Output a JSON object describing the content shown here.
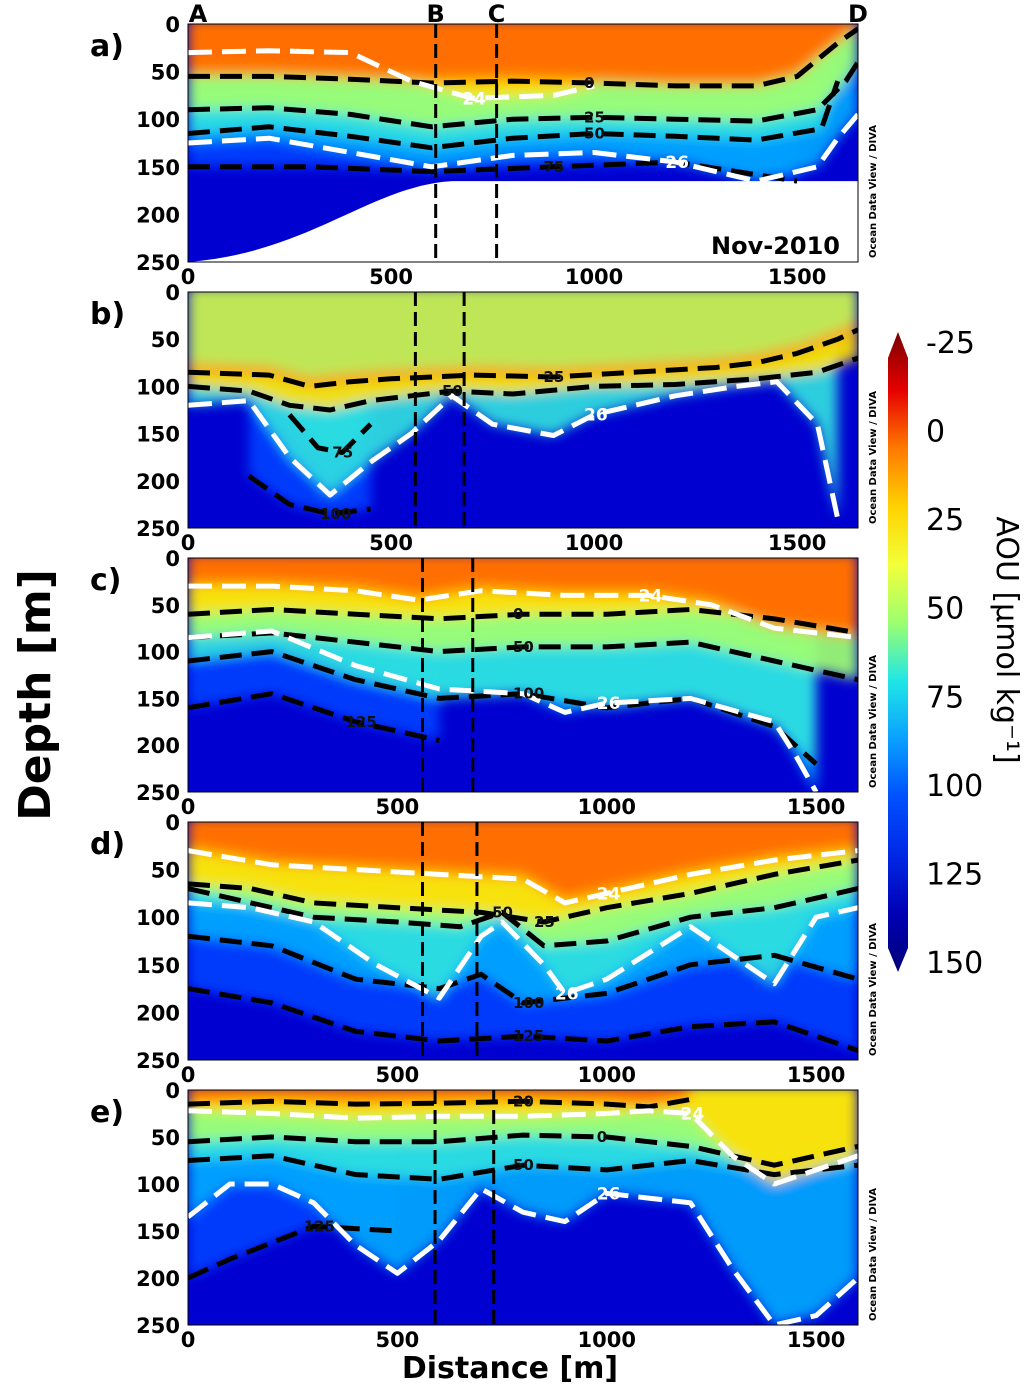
{
  "figure": {
    "ylabel": "Depth [m]",
    "xlabel": "Distance [m]",
    "watermark": "Ocean Data View / DIVA",
    "station_labels": [
      "A",
      "B",
      "C",
      "D"
    ]
  },
  "colorbar": {
    "label": "AOU [µmol kg⁻¹]",
    "ticks": [
      "-25",
      "0",
      "25",
      "50",
      "75",
      "100",
      "125",
      "150"
    ],
    "colors": [
      "#7a0000",
      "#e60000",
      "#ff7a00",
      "#ffd200",
      "#f2ff3a",
      "#9cff70",
      "#20e6e6",
      "#0aa0ff",
      "#0050ff",
      "#0028e6",
      "#0000b4",
      "#00007a"
    ]
  },
  "chart_data": [
    {
      "type": "heatmap",
      "panel": "a)",
      "annotation": "Nov-2010",
      "xticks": [
        "0",
        "500",
        "1000",
        "1500"
      ],
      "yticks": [
        "0",
        "50",
        "100",
        "150",
        "200",
        "250"
      ],
      "xlim": [
        0,
        1650
      ],
      "ylim": [
        250,
        0
      ],
      "station_lines_x": [
        610,
        760
      ],
      "contours_black": [
        {
          "level": "0",
          "x": [
            0,
            200,
            400,
            600,
            800,
            1000,
            1200,
            1400,
            1500,
            1600,
            1650
          ],
          "y": [
            55,
            55,
            58,
            62,
            60,
            62,
            65,
            65,
            55,
            20,
            5
          ]
        },
        {
          "level": "25",
          "x": [
            0,
            200,
            400,
            600,
            800,
            1000,
            1200,
            1400,
            1550,
            1620,
            1650
          ],
          "y": [
            90,
            88,
            95,
            108,
            100,
            98,
            100,
            102,
            90,
            60,
            40
          ]
        },
        {
          "level": "50",
          "x": [
            0,
            200,
            400,
            600,
            800,
            1000,
            1200,
            1400,
            1560,
            1600
          ],
          "y": [
            115,
            108,
            118,
            130,
            120,
            115,
            118,
            122,
            110,
            60
          ]
        },
        {
          "level": "75",
          "x": [
            0,
            300,
            600,
            900,
            1200,
            1500
          ],
          "y": [
            150,
            150,
            155,
            150,
            145,
            165
          ]
        }
      ],
      "contours_white": [
        {
          "level": "24",
          "x": [
            0,
            200,
            400,
            550,
            700,
            900,
            1000
          ],
          "y": [
            30,
            28,
            30,
            60,
            78,
            75,
            65
          ]
        },
        {
          "level": "26",
          "x": [
            0,
            200,
            400,
            600,
            800,
            1000,
            1200,
            1400,
            1550,
            1600,
            1650
          ],
          "y": [
            125,
            120,
            135,
            150,
            138,
            135,
            145,
            165,
            150,
            120,
            95
          ]
        }
      ],
      "contour_labels": [
        "-10",
        "-10",
        "0",
        "10",
        "25",
        "50",
        "75",
        "100",
        "-10",
        "10"
      ],
      "white_labels": [
        "24",
        "24",
        "26"
      ]
    },
    {
      "type": "heatmap",
      "panel": "b)",
      "xticks": [
        "0",
        "500",
        "1000",
        "1500"
      ],
      "yticks": [
        "0",
        "50",
        "100",
        "150",
        "200",
        "250"
      ],
      "xlim": [
        0,
        1650
      ],
      "ylim": [
        250,
        0
      ],
      "station_lines_x": [
        560,
        680
      ],
      "contours_black": [
        {
          "level": "25",
          "x": [
            0,
            200,
            300,
            400,
            500,
            600,
            700,
            900,
            1100,
            1300,
            1400,
            1500,
            1600,
            1650
          ],
          "y": [
            85,
            88,
            100,
            95,
            92,
            90,
            88,
            90,
            85,
            80,
            75,
            65,
            50,
            40
          ]
        },
        {
          "level": "50",
          "x": [
            0,
            150,
            250,
            350,
            450,
            550,
            650,
            800,
            1000,
            1200,
            1400,
            1550,
            1650
          ],
          "y": [
            100,
            105,
            120,
            125,
            115,
            110,
            105,
            108,
            100,
            98,
            92,
            85,
            70
          ]
        },
        {
          "level": "75",
          "x": [
            250,
            320,
            380,
            450
          ],
          "y": [
            130,
            165,
            170,
            140
          ]
        },
        {
          "level": "100",
          "x": [
            150,
            250,
            350,
            450
          ],
          "y": [
            195,
            225,
            235,
            230
          ]
        }
      ],
      "contours_white": [
        {
          "level": "26",
          "x": [
            0,
            150,
            250,
            350,
            450,
            550,
            650,
            750,
            900,
            1000,
            1200,
            1350,
            1450,
            1550,
            1600
          ],
          "y": [
            120,
            115,
            175,
            215,
            180,
            150,
            110,
            140,
            152,
            130,
            110,
            100,
            95,
            140,
            240
          ]
        }
      ],
      "contour_labels": [
        "5",
        "50",
        "25",
        "5",
        "50",
        "25",
        "5",
        "75",
        "0",
        "125",
        "75",
        "125",
        "100",
        "100",
        "125",
        "25",
        "50"
      ],
      "white_labels": [
        "26",
        "26",
        "26"
      ]
    },
    {
      "type": "heatmap",
      "panel": "c)",
      "xticks": [
        "0",
        "500",
        "1000",
        "1500"
      ],
      "yticks": [
        "0",
        "50",
        "100",
        "150",
        "200",
        "250"
      ],
      "xlim": [
        0,
        1600
      ],
      "ylim": [
        250,
        0
      ],
      "station_lines_x": [
        560,
        680
      ],
      "contours_black": [
        {
          "level": "0",
          "x": [
            0,
            200,
            400,
            600,
            800,
            1000,
            1200,
            1400,
            1600
          ],
          "y": [
            60,
            55,
            60,
            65,
            60,
            60,
            55,
            65,
            80
          ]
        },
        {
          "level": "50",
          "x": [
            0,
            200,
            400,
            600,
            800,
            1000,
            1200,
            1400,
            1600
          ],
          "y": [
            85,
            80,
            90,
            100,
            95,
            95,
            90,
            110,
            130
          ]
        },
        {
          "level": "100",
          "x": [
            0,
            200,
            400,
            600,
            800,
            1000,
            1200,
            1400,
            1500
          ],
          "y": [
            110,
            100,
            130,
            150,
            145,
            160,
            150,
            180,
            220
          ]
        },
        {
          "level": "125",
          "x": [
            0,
            200,
            400,
            600
          ],
          "y": [
            160,
            145,
            175,
            195
          ]
        }
      ],
      "contours_white": [
        {
          "level": "24",
          "x": [
            0,
            200,
            400,
            550,
            700,
            900,
            1100,
            1250,
            1400,
            1600
          ],
          "y": [
            30,
            30,
            35,
            45,
            35,
            40,
            40,
            50,
            75,
            85
          ]
        },
        {
          "level": "26",
          "x": [
            0,
            200,
            400,
            600,
            800,
            900,
            1000,
            1200,
            1400,
            1450,
            1500
          ],
          "y": [
            85,
            78,
            115,
            140,
            145,
            165,
            155,
            150,
            175,
            210,
            250
          ]
        }
      ],
      "contour_labels": [
        "0",
        "0",
        "50",
        "0",
        "50",
        "50",
        "100",
        "125",
        "100",
        "125",
        "75",
        "100",
        "5",
        "0"
      ],
      "white_labels": [
        "24",
        "26",
        "24",
        "26"
      ]
    },
    {
      "type": "heatmap",
      "panel": "d)",
      "xticks": [
        "0",
        "500",
        "1000",
        "1500"
      ],
      "yticks": [
        "0",
        "50",
        "100",
        "150",
        "200",
        "250"
      ],
      "xlim": [
        0,
        1600
      ],
      "ylim": [
        250,
        0
      ],
      "station_lines_x": [
        560,
        690
      ],
      "contours_black": [
        {
          "level": "25",
          "x": [
            0,
            150,
            300,
            500,
            700,
            850,
            1000,
            1200,
            1400,
            1600
          ],
          "y": [
            65,
            70,
            85,
            90,
            95,
            105,
            90,
            75,
            55,
            40
          ]
        },
        {
          "level": "50",
          "x": [
            0,
            150,
            300,
            500,
            650,
            750,
            850,
            1000,
            1200,
            1400,
            1600
          ],
          "y": [
            70,
            85,
            100,
            105,
            110,
            95,
            130,
            125,
            100,
            90,
            70
          ]
        },
        {
          "level": "100",
          "x": [
            0,
            200,
            400,
            600,
            700,
            800,
            1000,
            1200,
            1400,
            1600
          ],
          "y": [
            120,
            130,
            165,
            175,
            160,
            190,
            180,
            150,
            140,
            165
          ]
        },
        {
          "level": "125",
          "x": [
            0,
            200,
            400,
            600,
            800,
            1000,
            1200,
            1400,
            1600
          ],
          "y": [
            175,
            190,
            220,
            230,
            225,
            230,
            215,
            210,
            240
          ]
        }
      ],
      "contours_white": [
        {
          "level": "24",
          "x": [
            0,
            200,
            400,
            600,
            800,
            900,
            1000,
            1200,
            1400,
            1600
          ],
          "y": [
            30,
            45,
            50,
            55,
            60,
            85,
            75,
            55,
            40,
            30
          ]
        },
        {
          "level": "26",
          "x": [
            0,
            150,
            300,
            450,
            600,
            700,
            750,
            850,
            900,
            1000,
            1200,
            1400,
            1500,
            1600
          ],
          "y": [
            85,
            90,
            105,
            150,
            185,
            120,
            105,
            150,
            180,
            165,
            110,
            170,
            100,
            90
          ]
        }
      ],
      "contour_labels": [
        "0",
        "50",
        "25",
        "25",
        "100",
        "00",
        "50",
        "100",
        "125",
        "125",
        "100",
        "125",
        "5",
        "0"
      ],
      "white_labels": [
        "24",
        "26",
        "24",
        "26"
      ]
    },
    {
      "type": "heatmap",
      "panel": "e)",
      "xticks": [
        "0",
        "500",
        "1000",
        "1500"
      ],
      "yticks": [
        "0",
        "50",
        "100",
        "150",
        "200",
        "250"
      ],
      "xlim": [
        0,
        1600
      ],
      "ylim": [
        250,
        0
      ],
      "station_lines_x": [
        590,
        730
      ],
      "contours_black": [
        {
          "level": "20",
          "x": [
            0,
            200,
            400,
            600,
            800,
            1000,
            1100,
            1200
          ],
          "y": [
            15,
            12,
            15,
            14,
            12,
            15,
            18,
            10
          ]
        },
        {
          "level": "0",
          "x": [
            0,
            200,
            400,
            600,
            800,
            1000,
            1100,
            1200,
            1400,
            1600
          ],
          "y": [
            55,
            50,
            55,
            55,
            48,
            50,
            55,
            60,
            80,
            60
          ]
        },
        {
          "level": "50",
          "x": [
            0,
            200,
            400,
            600,
            800,
            1000,
            1200,
            1400,
            1600
          ],
          "y": [
            75,
            70,
            90,
            95,
            80,
            85,
            75,
            90,
            80
          ]
        },
        {
          "level": "125",
          "x": [
            0,
            100,
            300,
            500
          ],
          "y": [
            200,
            180,
            145,
            150
          ]
        }
      ],
      "contours_white": [
        {
          "level": "24",
          "x": [
            0,
            200,
            400,
            600,
            800,
            1000,
            1100,
            1200,
            1300,
            1400,
            1500,
            1600
          ],
          "y": [
            22,
            25,
            30,
            28,
            28,
            25,
            22,
            25,
            70,
            100,
            85,
            70
          ]
        },
        {
          "level": "26",
          "x": [
            0,
            100,
            200,
            300,
            400,
            500,
            600,
            700,
            800,
            900,
            1000,
            1100,
            1200,
            1300,
            1400,
            1500,
            1600
          ],
          "y": [
            135,
            100,
            100,
            120,
            165,
            195,
            160,
            105,
            130,
            140,
            110,
            115,
            120,
            190,
            250,
            240,
            200
          ]
        }
      ],
      "contour_labels": [
        "20",
        "-10",
        "20",
        "20",
        "20",
        "-10",
        "-10",
        "0",
        "125",
        "50",
        "125",
        "125"
      ],
      "white_labels": [
        "24",
        "26",
        "24",
        "26",
        "26"
      ]
    }
  ]
}
